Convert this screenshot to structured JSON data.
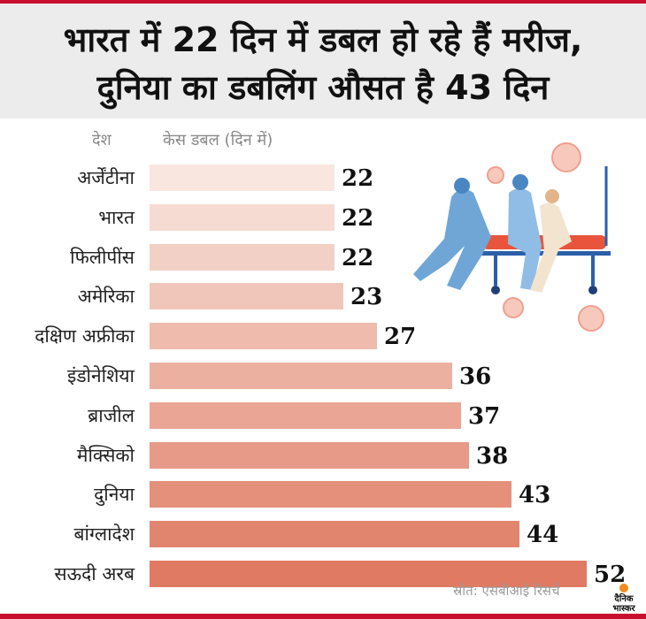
{
  "header": {
    "title_line1": "भारत में 22 दिन में डबल हो रहे हैं मरीज,",
    "title_line2": "दुनिया का डबलिंग औसत है 43 दिन"
  },
  "columns": {
    "country": "देश",
    "value": "केस डबल (दिन में)"
  },
  "source": "स्रोत: एसबीआई रिसर्च",
  "logo": {
    "line1": "दैनिक",
    "line2": "भास्कर"
  },
  "colors": {
    "bar_light": "#f8e6df",
    "bar_dark": "#e07a62",
    "accent": "#c8102e"
  },
  "chart_data": {
    "type": "bar",
    "orientation": "horizontal",
    "categories": [
      "अर्जेंटीना",
      "भारत",
      "फिलीपींस",
      "अमेरिका",
      "दक्षिण अफ्रीका",
      "इंडोनेशिया",
      "ब्राजील",
      "मैक्सिको",
      "दुनिया",
      "बांग्लादेश",
      "सऊदी अरब"
    ],
    "values": [
      22,
      22,
      22,
      23,
      27,
      36,
      37,
      38,
      43,
      44,
      52
    ],
    "xlim": [
      0,
      52
    ],
    "grid": false,
    "legend": "none"
  }
}
